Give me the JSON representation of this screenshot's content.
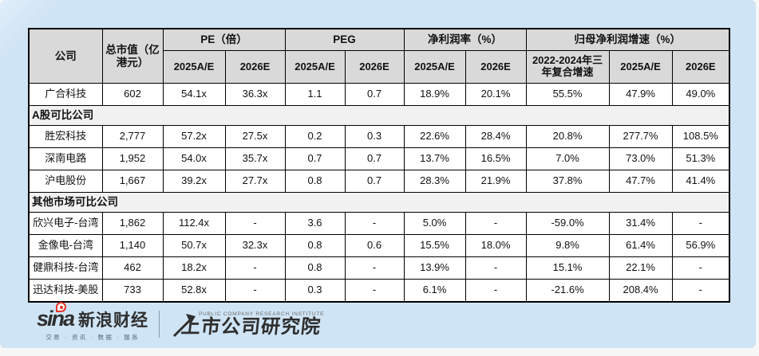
{
  "colors": {
    "card_bg": "#cfe4f4",
    "card_light": "#e0eefa",
    "header_bg": "#d9d9d9",
    "section_bg": "#f1f1f1",
    "row_bg": "#ffffff",
    "border_color": "#000000",
    "logo_color": "#2e2e2e",
    "sina_red": "#e6342b"
  },
  "chart_data": {
    "type": "table",
    "column_groups": [
      {
        "label": "公司",
        "span": 1
      },
      {
        "label": "总市值（亿港元）",
        "span": 1
      },
      {
        "label": "PE（倍）",
        "span": 2
      },
      {
        "label": "PEG",
        "span": 2
      },
      {
        "label": "净利润率（%）",
        "span": 2
      },
      {
        "label": "归母净利润增速（%）",
        "span": 3
      }
    ],
    "sub_columns": [
      "2025A/E",
      "2026E",
      "2025A/E",
      "2026E",
      "2025A/E",
      "2026E",
      "2022-2024年三年复合增速",
      "2025A/E",
      "2026E"
    ],
    "rows": [
      {
        "type": "data",
        "cells": [
          "广合科技",
          "602",
          "54.1x",
          "36.3x",
          "1.1",
          "0.7",
          "18.9%",
          "20.1%",
          "55.5%",
          "47.9%",
          "49.0%"
        ]
      },
      {
        "type": "section",
        "label": "A股可比公司"
      },
      {
        "type": "data",
        "cells": [
          "胜宏科技",
          "2,777",
          "57.2x",
          "27.5x",
          "0.2",
          "0.3",
          "22.6%",
          "28.4%",
          "20.8%",
          "277.7%",
          "108.5%"
        ]
      },
      {
        "type": "data",
        "cells": [
          "深南电路",
          "1,952",
          "54.0x",
          "35.7x",
          "0.7",
          "0.7",
          "13.7%",
          "16.5%",
          "7.0%",
          "73.0%",
          "51.3%"
        ]
      },
      {
        "type": "data",
        "cells": [
          "沪电股份",
          "1,667",
          "39.2x",
          "27.7x",
          "0.8",
          "0.7",
          "28.3%",
          "21.9%",
          "37.8%",
          "47.7%",
          "41.4%"
        ]
      },
      {
        "type": "section",
        "label": "其他市场可比公司"
      },
      {
        "type": "data",
        "cells": [
          "欣兴电子-台湾",
          "1,862",
          "112.4x",
          "-",
          "3.6",
          "-",
          "5.0%",
          "-",
          "-59.0%",
          "31.4%",
          "-"
        ]
      },
      {
        "type": "data",
        "cells": [
          "金像电-台湾",
          "1,140",
          "50.7x",
          "32.3x",
          "0.8",
          "0.6",
          "15.5%",
          "18.0%",
          "9.8%",
          "61.4%",
          "56.9%"
        ]
      },
      {
        "type": "data",
        "cells": [
          "健鼎科技-台湾",
          "462",
          "18.2x",
          "-",
          "0.8",
          "-",
          "13.9%",
          "-",
          "15.1%",
          "22.1%",
          "-"
        ]
      },
      {
        "type": "data",
        "cells": [
          "迅达科技-美股",
          "733",
          "52.8x",
          "-",
          "0.3",
          "-",
          "6.1%",
          "-",
          "-21.6%",
          "208.4%",
          "-"
        ]
      }
    ]
  },
  "footer": {
    "sina_wordmark": "sina",
    "brand": "新浪财经",
    "tagline": "交易 · 资讯 · 数据 · 服务",
    "institute": "上市公司研究院",
    "institute_en": "PUBLIC COMPANY RESEARCH INSTITUTE"
  }
}
